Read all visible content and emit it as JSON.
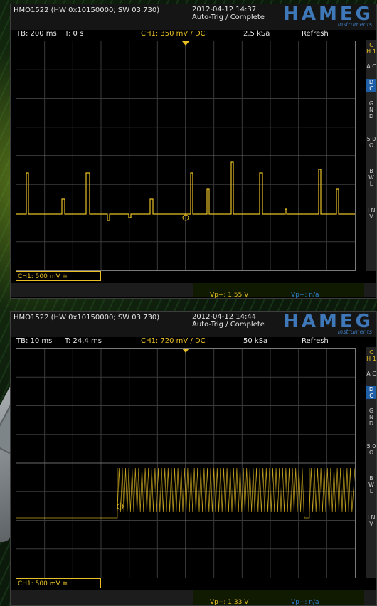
{
  "scopes": [
    {
      "model": "HMO1522 (HW 0x10150000; SW 03.730)",
      "datetime": "2012-04-12 14:37",
      "trigger_status": "Auto-Trig / Complete",
      "logo": "HAMEG",
      "logo_sub": "Instruments",
      "timebase": "TB: 200 ms",
      "trigger_time": "T: 0 s",
      "channel_setting": "CH1: 350 mV / DC",
      "sample_rate": "2.5 kSa",
      "mode": "Refresh",
      "ch1_scale": "CH1: 500 mV ≅",
      "vp_ch1": "Vp+: 1.55 V",
      "vp_ch2": "Vp+: n/a",
      "side_menu": [
        "C H 1",
        "A C",
        "D C",
        "G N D",
        "5 0 Ω",
        "B W L",
        "I N V"
      ],
      "selected_coupling": "DC",
      "trace_color": "#e8c024"
    },
    {
      "model": "HMO1522 (HW 0x10150000; SW 03.730)",
      "datetime": "2012-04-12 14:44",
      "trigger_status": "Auto-Trig / Complete",
      "logo": "HAMEG",
      "logo_sub": "Instruments",
      "timebase": "TB: 10 ms",
      "trigger_time": "T: 24.4 ms",
      "channel_setting": "CH1: 720 mV / DC",
      "sample_rate": "50 kSa",
      "mode": "Refresh",
      "ch1_scale": "CH1: 500 mV ≅",
      "vp_ch1": "Vp+: 1.33 V",
      "vp_ch2": "Vp+: n/a",
      "side_menu": [
        "C H 1",
        "A C",
        "D C",
        "G N D",
        "5 0 Ω",
        "B W L",
        "I N V"
      ],
      "selected_coupling": "DC",
      "trace_color": "#e8c024"
    }
  ]
}
